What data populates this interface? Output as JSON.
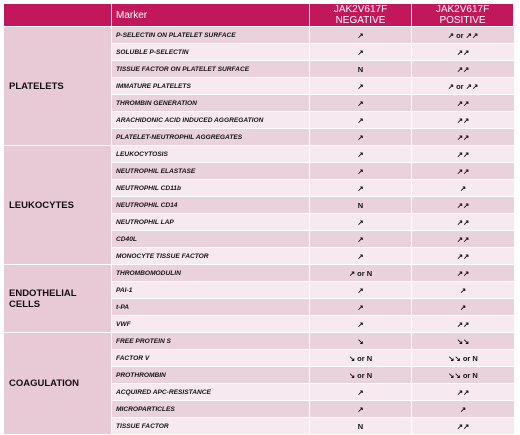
{
  "header": {
    "col_group": "",
    "col_marker": "Marker",
    "col_negative": "JAK2V617F NEGATIVE",
    "col_positive": "JAK2V617F POSITIVE"
  },
  "groups": [
    {
      "name": "PLATELETS",
      "rows": [
        {
          "marker": "P-SELECTIN ON PLATELET SURFACE",
          "neg": "↗",
          "pos": "↗ or ↗↗"
        },
        {
          "marker": "SOLUBLE P-SELECTIN",
          "neg": "↗",
          "pos": "↗↗"
        },
        {
          "marker": "TISSUE FACTOR ON PLATELET SURFACE",
          "neg": "N",
          "pos": "↗↗"
        },
        {
          "marker": "IMMATURE PLATELETS",
          "neg": "↗",
          "pos": "↗ or ↗↗"
        },
        {
          "marker": "THROMBIN GENERATION",
          "neg": "↗",
          "pos": "↗↗"
        },
        {
          "marker": "ARACHIDONIC ACID INDUCED AGGREGATION",
          "neg": "↗",
          "pos": "↗↗"
        },
        {
          "marker": "PLATELET-NEUTROPHIL AGGREGATES",
          "neg": "↗",
          "pos": "↗↗"
        }
      ]
    },
    {
      "name": "LEUKOCYTES",
      "rows": [
        {
          "marker": "LEUKOCYTOSIS",
          "neg": "↗",
          "pos": "↗↗"
        },
        {
          "marker": "NEUTROPHIL ELASTASE",
          "neg": "↗",
          "pos": "↗↗"
        },
        {
          "marker": "NEUTROPHIL CD11b",
          "neg": "↗",
          "pos": "↗"
        },
        {
          "marker": "NEUTROPHIL CD14",
          "neg": "N",
          "pos": "↗↗"
        },
        {
          "marker": "NEUTROPHIL LAP",
          "neg": "↗",
          "pos": "↗↗"
        },
        {
          "marker": "CD40L",
          "neg": "↗",
          "pos": "↗↗"
        },
        {
          "marker": "MONOCYTE TISSUE FACTOR",
          "neg": "↗",
          "pos": "↗↗"
        }
      ]
    },
    {
      "name": "ENDOTHELIAL CELLS",
      "rows": [
        {
          "marker": "THROMBOMODULIN",
          "neg": "↗ or N",
          "pos": "↗↗"
        },
        {
          "marker": "PAI-1",
          "neg": "↗",
          "pos": "↗"
        },
        {
          "marker": "t-PA",
          "neg": "↗",
          "pos": "↗"
        },
        {
          "marker": "VWF",
          "neg": "↗",
          "pos": "↗↗"
        }
      ]
    },
    {
      "name": "COAGULATION",
      "rows": [
        {
          "marker": "FREE PROTEIN S",
          "neg": "↘",
          "pos": "↘↘"
        },
        {
          "marker": "FACTOR V",
          "neg": "↘ or N",
          "pos": "↘↘ or N"
        },
        {
          "marker": "PROTHROMBIN",
          "neg": "↘ or N",
          "pos": "↘↘ or N"
        },
        {
          "marker": "ACQUIRED APC-RESISTANCE",
          "neg": "↗",
          "pos": "↗↗"
        },
        {
          "marker": "MICROPARTICLES",
          "neg": "↗",
          "pos": "↗"
        },
        {
          "marker": "TISSUE FACTOR",
          "neg": "N",
          "pos": "↗↗"
        }
      ]
    }
  ]
}
